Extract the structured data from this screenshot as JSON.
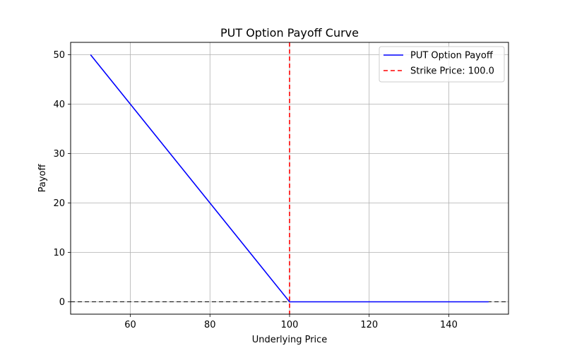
{
  "chart_data": {
    "type": "line",
    "title": "PUT Option Payoff Curve",
    "xlabel": "Underlying Price",
    "ylabel": "Payoff",
    "xlim": [
      45.0,
      155.0
    ],
    "ylim": [
      -2.5,
      52.5
    ],
    "xticks": [
      60,
      80,
      100,
      120,
      140
    ],
    "yticks": [
      0,
      10,
      20,
      30,
      40,
      50
    ],
    "grid": true,
    "legend_position": "upper right",
    "series": [
      {
        "name": "PUT Option Payoff",
        "style": "solid",
        "color": "#0000ff",
        "x": [
          50,
          60,
          70,
          80,
          90,
          100,
          110,
          120,
          130,
          140,
          150
        ],
        "y": [
          50,
          40,
          30,
          20,
          10,
          0,
          0,
          0,
          0,
          0,
          0
        ]
      }
    ],
    "reference_lines": [
      {
        "name": "Strike Price: 100.0",
        "orientation": "vertical",
        "value": 100.0,
        "style": "dashed",
        "color": "#ff0000",
        "in_legend": true
      },
      {
        "orientation": "horizontal",
        "value": 0,
        "style": "dashed",
        "color": "#000000",
        "in_legend": false
      }
    ]
  }
}
